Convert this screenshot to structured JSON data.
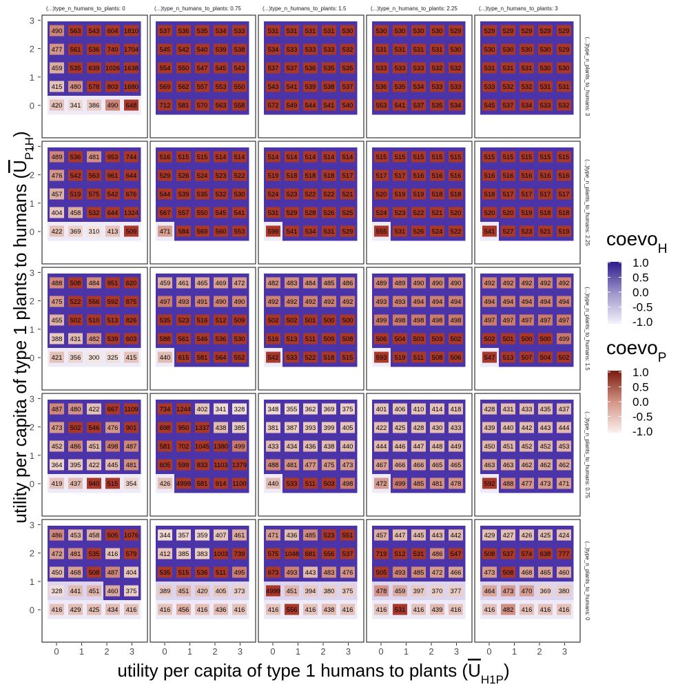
{
  "chart_data": {
    "type": "heatmap",
    "xlabel": "utility per capita of type 1 humans to plants (U̅H1P)",
    "xlabel_main": "utility per capita of type 1 humans to plants (",
    "xlabel_sym": "U",
    "xlabel_sub": "H1P",
    "xlabel_end": ")",
    "ylabel": "utility per capita of type 1 plants to humans (U̅P1H)",
    "ylabel_main": "utility per capita of type 1 plants to humans (",
    "ylabel_sym": "U",
    "ylabel_sub": "P1H",
    "ylabel_end": ")",
    "x_ticks": [
      "0",
      "1",
      "2",
      "3"
    ],
    "y_ticks": [
      "0",
      "1",
      "2",
      "3"
    ],
    "facet_cols": [
      "(...)type_n_humans_to_plants: 0",
      "(...)type_n_humans_to_plants: 0.75",
      "(...)type_n_humans_to_plants: 1.5",
      "(...)type_n_humans_to_plants: 2.25",
      "(...)type_n_humans_to_plants: 3"
    ],
    "facet_rows": [
      "(...)type_n_plants_to_humans: 3",
      "(...)type_n_plants_to_humans: 2.25",
      "(...)type_n_plants_to_humans: 1.5",
      "(...)type_n_plants_to_humans: 0.75",
      "(...)type_n_plants_to_humans: 0"
    ],
    "grid_x_values": [
      0,
      0.75,
      1.5,
      2.25,
      3
    ],
    "grid_y_values": [
      3,
      2.25,
      1.5,
      0.75,
      0
    ],
    "panel_labels": [
      [
        [
          [
            490,
            563,
            543,
            604,
            1810
          ],
          [
            477,
            561,
            536,
            740,
            1704
          ],
          [
            459,
            535,
            639,
            1026,
            1638
          ],
          [
            415,
            480,
            578,
            803,
            1680
          ],
          [
            420,
            341,
            386,
            490,
            648
          ]
        ],
        [
          [
            537,
            536,
            535,
            534,
            533
          ],
          [
            545,
            542,
            540,
            539,
            538
          ],
          [
            554,
            550,
            547,
            545,
            543
          ],
          [
            569,
            562,
            557,
            553,
            550
          ],
          [
            712,
            581,
            570,
            563,
            558
          ]
        ],
        [
          [
            531,
            531,
            531,
            531,
            530
          ],
          [
            534,
            533,
            533,
            533,
            532
          ],
          [
            537,
            537,
            536,
            535,
            535
          ],
          [
            543,
            541,
            539,
            538,
            537
          ],
          [
            572,
            549,
            544,
            541,
            540
          ]
        ],
        [
          [
            530,
            530,
            530,
            530,
            529
          ],
          [
            531,
            531,
            531,
            531,
            530
          ],
          [
            533,
            533,
            533,
            532,
            532
          ],
          [
            536,
            535,
            534,
            533,
            533
          ],
          [
            553,
            541,
            537,
            535,
            534
          ]
        ],
        [
          [
            529,
            529,
            529,
            529,
            529
          ],
          [
            530,
            530,
            530,
            530,
            529
          ],
          [
            531,
            531,
            531,
            530,
            530
          ],
          [
            533,
            532,
            532,
            531,
            531
          ],
          [
            545,
            537,
            534,
            533,
            532
          ]
        ]
      ],
      [
        [
          [
            489,
            536,
            481,
            953,
            744
          ],
          [
            476,
            542,
            563,
            961,
            644
          ],
          [
            457,
            519,
            575,
            542,
            676
          ],
          [
            404,
            458,
            532,
            644,
            1324
          ],
          [
            422,
            369,
            310,
            413,
            509
          ]
        ],
        [
          [
            516,
            515,
            515,
            514,
            514
          ],
          [
            529,
            526,
            524,
            523,
            522
          ],
          [
            544,
            539,
            535,
            532,
            530
          ],
          [
            567,
            557,
            550,
            545,
            541
          ],
          [
            471,
            584,
            569,
            560,
            553
          ]
        ],
        [
          [
            514,
            514,
            514,
            514,
            514
          ],
          [
            519,
            518,
            518,
            518,
            517
          ],
          [
            524,
            523,
            522,
            522,
            521
          ],
          [
            531,
            529,
            528,
            526,
            525
          ],
          [
            599,
            541,
            534,
            531,
            529
          ]
        ],
        [
          [
            515,
            515,
            515,
            515,
            515
          ],
          [
            517,
            517,
            516,
            516,
            516
          ],
          [
            520,
            519,
            519,
            518,
            518
          ],
          [
            524,
            523,
            522,
            521,
            520
          ],
          [
            555,
            531,
            526,
            524,
            522
          ]
        ],
        [
          [
            515,
            515,
            515,
            515,
            515
          ],
          [
            516,
            516,
            516,
            516,
            516
          ],
          [
            518,
            517,
            517,
            517,
            517
          ],
          [
            520,
            520,
            519,
            518,
            518
          ],
          [
            541,
            527,
            523,
            521,
            519
          ]
        ]
      ],
      [
        [
          [
            488,
            508,
            484,
            951,
            620
          ],
          [
            475,
            522,
            556,
            592,
            875
          ],
          [
            455,
            502,
            510,
            513,
            826
          ],
          [
            388,
            431,
            482,
            539,
            603
          ],
          [
            421,
            356,
            300,
            325,
            415
          ]
        ],
        [
          [
            459,
            461,
            465,
            469,
            472
          ],
          [
            497,
            493,
            491,
            490,
            490
          ],
          [
            535,
            523,
            516,
            512,
            509
          ],
          [
            588,
            561,
            546,
            536,
            530
          ],
          [
            440,
            615,
            581,
            564,
            552
          ]
        ],
        [
          [
            482,
            483,
            484,
            485,
            486
          ],
          [
            492,
            492,
            492,
            492,
            492
          ],
          [
            502,
            502,
            501,
            500,
            500
          ],
          [
            516,
            513,
            511,
            509,
            508
          ],
          [
            542,
            533,
            522,
            518,
            515
          ]
        ],
        [
          [
            489,
            489,
            490,
            490,
            490
          ],
          [
            493,
            493,
            494,
            494,
            494
          ],
          [
            499,
            498,
            498,
            498,
            498
          ],
          [
            506,
            504,
            503,
            503,
            502
          ],
          [
            593,
            519,
            511,
            508,
            506
          ]
        ],
        [
          [
            492,
            492,
            492,
            492,
            492
          ],
          [
            494,
            494,
            494,
            494,
            494
          ],
          [
            497,
            497,
            497,
            497,
            497
          ],
          [
            502,
            501,
            500,
            500,
            499
          ],
          [
            547,
            513,
            507,
            504,
            502
          ]
        ]
      ],
      [
        [
          [
            487,
            480,
            422,
            667,
            1109
          ],
          [
            473,
            502,
            546,
            476,
            901
          ],
          [
            452,
            486,
            451,
            498,
            487
          ],
          [
            364,
            395,
            422,
            445,
            481
          ],
          [
            419,
            437,
            940,
            515,
            354
          ]
        ],
        [
          [
            734,
            1244,
            402,
            341,
            328
          ],
          [
            698,
            950,
            1337,
            438,
            385
          ],
          [
            581,
            702,
            1045,
            1380,
            499
          ],
          [
            605,
            599,
            833,
            1103,
            1379
          ],
          [
            426,
            4999,
            581,
            914,
            1100
          ]
        ],
        [
          [
            348,
            355,
            362,
            369,
            375
          ],
          [
            381,
            387,
            393,
            399,
            405
          ],
          [
            433,
            434,
            436,
            438,
            440
          ],
          [
            488,
            481,
            477,
            475,
            473
          ],
          [
            440,
            533,
            511,
            503,
            498
          ]
        ],
        [
          [
            401,
            406,
            410,
            414,
            418
          ],
          [
            422,
            425,
            428,
            430,
            433
          ],
          [
            444,
            446,
            447,
            448,
            449
          ],
          [
            467,
            466,
            466,
            465,
            465
          ],
          [
            472,
            499,
            485,
            481,
            478
          ]
        ],
        [
          [
            428,
            431,
            433,
            435,
            437
          ],
          [
            439,
            440,
            442,
            443,
            444
          ],
          [
            450,
            451,
            452,
            452,
            453
          ],
          [
            463,
            463,
            462,
            462,
            462
          ],
          [
            592,
            488,
            477,
            473,
            471
          ]
        ]
      ],
      [
        [
          [
            486,
            453,
            458,
            505,
            1076
          ],
          [
            472,
            481,
            535,
            416,
            579
          ],
          [
            450,
            468,
            508,
            487,
            404
          ],
          [
            328,
            441,
            451,
            460,
            375
          ],
          [
            416,
            429,
            425,
            434,
            416
          ]
        ],
        [
          [
            344,
            357,
            359,
            407,
            461
          ],
          [
            412,
            385,
            383,
            1003,
            739
          ],
          [
            535,
            515,
            536,
            511,
            495
          ],
          [
            389,
            451,
            420,
            405,
            373
          ],
          [
            416,
            456,
            416,
            436,
            416
          ]
        ],
        [
          [
            471,
            436,
            485,
            523,
            551
          ],
          [
            575,
            1048,
            681,
            556,
            537
          ],
          [
            673,
            493,
            443,
            483,
            476
          ],
          [
            4999,
            451,
            394,
            380,
            375
          ],
          [
            416,
            556,
            416,
            438,
            416
          ]
        ],
        [
          [
            457,
            447,
            445,
            443,
            442
          ],
          [
            719,
            512,
            531,
            486,
            547
          ],
          [
            505,
            493,
            485,
            472,
            466
          ],
          [
            478,
            459,
            397,
            370,
            377
          ],
          [
            416,
            531,
            416,
            439,
            416
          ]
        ],
        [
          [
            429,
            427,
            426,
            425,
            424
          ],
          [
            508,
            537,
            574,
            638,
            777
          ],
          [
            473,
            508,
            468,
            465,
            460
          ],
          [
            464,
            473,
            470,
            369,
            380
          ],
          [
            416,
            482,
            416,
            416,
            416
          ]
        ]
      ]
    ],
    "legend_H": {
      "title_main": "coevo",
      "title_sub": "H",
      "ticks": [
        "1.0",
        "0.5",
        "0.0",
        "-0.5",
        "-1.0"
      ],
      "range": [
        -1,
        1
      ],
      "color_high": "#2c1a8a",
      "color_low": "#f4f1fb"
    },
    "legend_P": {
      "title_main": "coevo",
      "title_sub": "P",
      "ticks": [
        "1.0",
        "0.5",
        "0.0",
        "-0.5",
        "-1.0"
      ],
      "range": [
        -1,
        1
      ],
      "color_high": "#7a1a0d",
      "color_low": "#fbf0ee"
    },
    "grid": true
  }
}
